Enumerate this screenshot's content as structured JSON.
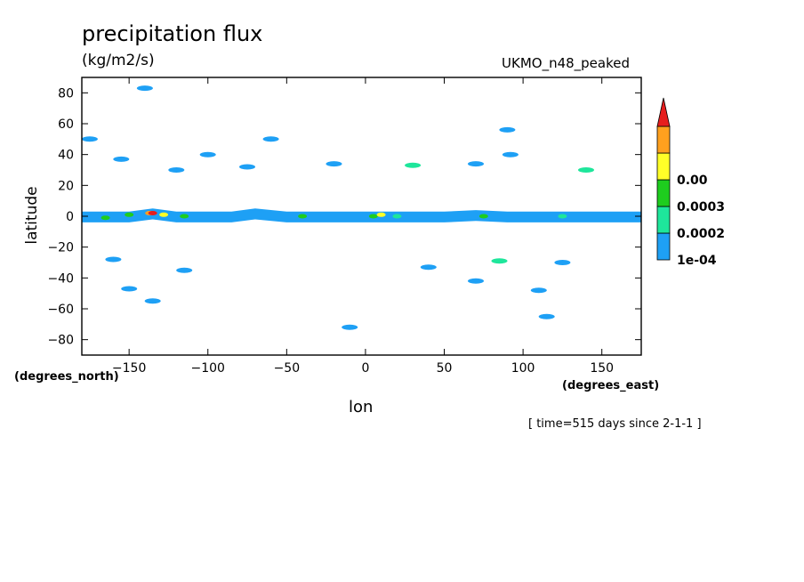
{
  "chart_data": {
    "type": "heatmap",
    "title": "precipitation flux",
    "units": "(kg/m2/s)",
    "model": "UKMO_n48_peaked",
    "xlabel": "lon",
    "ylabel": "latitude",
    "x_unit_label": "(degrees_east)",
    "y_unit_label": "(degrees_north)",
    "time_label": "[ time=515 days since 2-1-1 ]",
    "xlim": [
      -180,
      175
    ],
    "ylim": [
      -90,
      90
    ],
    "x_ticks": [
      -150,
      -100,
      -50,
      0,
      50,
      100,
      150
    ],
    "x_tick_labels": [
      "−150",
      "−100",
      "−50",
      "0",
      "50",
      "100",
      "150"
    ],
    "y_ticks": [
      -80,
      -60,
      -40,
      -20,
      0,
      20,
      40,
      60,
      80
    ],
    "y_tick_labels": [
      "−80",
      "−60",
      "−40",
      "−20",
      "0",
      "20",
      "40",
      "60",
      "80"
    ],
    "colorbar": {
      "levels": [
        "1e-04",
        "0.0002",
        "0.0003",
        "0.00"
      ],
      "colors": [
        "#1ea0f5",
        "#1ee69b",
        "#1ecd1e",
        "#ffff28",
        "#ffa01e",
        "#e61e1e"
      ]
    },
    "features": [
      {
        "lon": [
          -180,
          -150,
          -135,
          -120,
          -100,
          -85,
          -70,
          -50,
          -30,
          -10,
          0,
          10,
          30,
          50,
          70,
          90,
          110,
          130,
          150,
          175
        ],
        "lat": [
          0,
          0,
          2,
          0,
          0,
          0,
          2,
          0,
          0,
          0,
          0,
          0,
          0,
          0,
          1,
          0,
          0,
          0,
          0,
          0
        ],
        "level": 1
      },
      {
        "cells": [
          {
            "lon": -175,
            "lat": 50,
            "level": 1
          },
          {
            "lon": -155,
            "lat": 37,
            "level": 1
          },
          {
            "lon": -140,
            "lat": 83,
            "level": 1
          },
          {
            "lon": -120,
            "lat": 30,
            "level": 1
          },
          {
            "lon": -100,
            "lat": 40,
            "level": 1
          },
          {
            "lon": -75,
            "lat": 32,
            "level": 1
          },
          {
            "lon": -60,
            "lat": 50,
            "level": 1
          },
          {
            "lon": -20,
            "lat": 34,
            "level": 1
          },
          {
            "lon": 30,
            "lat": 33,
            "level": 2
          },
          {
            "lon": 70,
            "lat": 34,
            "level": 1
          },
          {
            "lon": 90,
            "lat": 56,
            "level": 1
          },
          {
            "lon": 92,
            "lat": 40,
            "level": 1
          },
          {
            "lon": 140,
            "lat": 30,
            "level": 2
          },
          {
            "lon": -160,
            "lat": -28,
            "level": 1
          },
          {
            "lon": -115,
            "lat": -35,
            "level": 1
          },
          {
            "lon": -135,
            "lat": -55,
            "level": 1
          },
          {
            "lon": -150,
            "lat": -47,
            "level": 1
          },
          {
            "lon": 40,
            "lat": -33,
            "level": 1
          },
          {
            "lon": 85,
            "lat": -29,
            "level": 2
          },
          {
            "lon": 125,
            "lat": -30,
            "level": 1
          },
          {
            "lon": 110,
            "lat": -48,
            "level": 1
          },
          {
            "lon": 115,
            "lat": -65,
            "level": 1
          },
          {
            "lon": -10,
            "lat": -72,
            "level": 1
          },
          {
            "lon": 70,
            "lat": -42,
            "level": 1
          }
        ]
      },
      {
        "cells": [
          {
            "lon": -165,
            "lat": -1,
            "level": 3
          },
          {
            "lon": -150,
            "lat": 1,
            "level": 3
          },
          {
            "lon": -137,
            "lat": 2,
            "level": 5
          },
          {
            "lon": -135,
            "lat": 2,
            "level": 6
          },
          {
            "lon": -128,
            "lat": 1,
            "level": 4
          },
          {
            "lon": -115,
            "lat": 0,
            "level": 3
          },
          {
            "lon": -40,
            "lat": 0,
            "level": 3
          },
          {
            "lon": 5,
            "lat": 0,
            "level": 3
          },
          {
            "lon": 10,
            "lat": 1,
            "level": 4
          },
          {
            "lon": 20,
            "lat": 0,
            "level": 2
          },
          {
            "lon": 75,
            "lat": 0,
            "level": 3
          },
          {
            "lon": 125,
            "lat": 0,
            "level": 2
          }
        ]
      }
    ]
  }
}
